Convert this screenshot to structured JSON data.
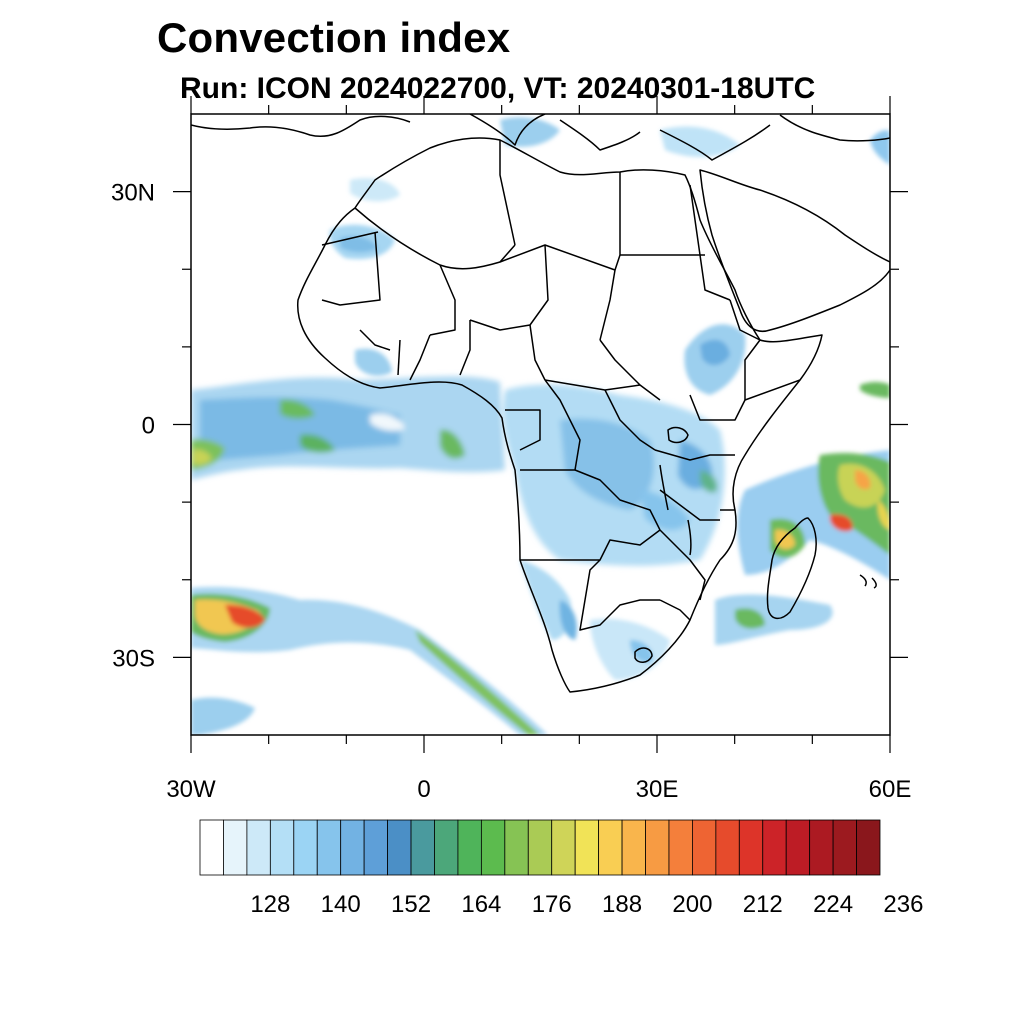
{
  "title": "Convection index",
  "subtitle": "Run: ICON 2024022700,  VT: 20240301-18UTC",
  "map": {
    "lon_range": [
      -30,
      60
    ],
    "lat_range": [
      -40,
      40
    ],
    "lon_ticks": [
      {
        "value": -30,
        "label": "30W"
      },
      {
        "value": 0,
        "label": "0"
      },
      {
        "value": 30,
        "label": "30E"
      },
      {
        "value": 60,
        "label": "60E"
      }
    ],
    "lat_ticks": [
      {
        "value": 30,
        "label": "30N"
      },
      {
        "value": 0,
        "label": "0"
      },
      {
        "value": -30,
        "label": "30S"
      }
    ],
    "minor_lon_ticks": [
      -20,
      -10,
      10,
      20,
      40,
      50
    ],
    "minor_lat_ticks": [
      20,
      10,
      -10,
      -20
    ]
  },
  "colorbar": {
    "colors": [
      "#ffffff",
      "#e6f4fb",
      "#cde9f8",
      "#b4dff6",
      "#9bd4f4",
      "#86c4ec",
      "#72b2e3",
      "#5e9fd8",
      "#4b8fc6",
      "#4a9a9e",
      "#4ca77a",
      "#4fb45a",
      "#5cbb4e",
      "#86c354",
      "#aacb55",
      "#cfd458",
      "#f1e357",
      "#f9ce53",
      "#f9b54c",
      "#f79b43",
      "#f47f3b",
      "#ee6433",
      "#e64b2c",
      "#dd3429",
      "#cc2328",
      "#bd1c25",
      "#ac1a22",
      "#9c1a1f",
      "#8a171c"
    ],
    "labels": [
      "128",
      "140",
      "152",
      "164",
      "176",
      "188",
      "200",
      "212",
      "224",
      "236"
    ]
  }
}
